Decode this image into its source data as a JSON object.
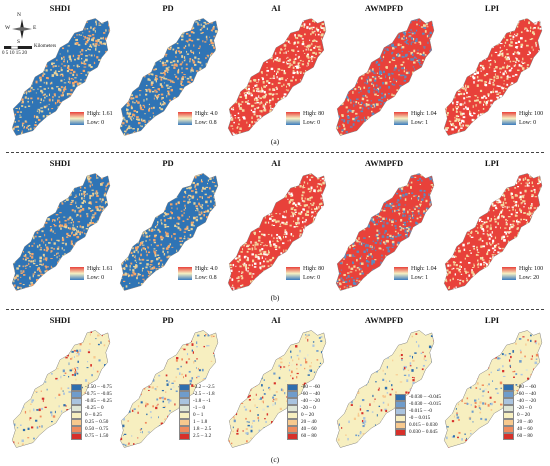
{
  "sections": [
    {
      "caption": "(a)",
      "panels": [
        {
          "title": "SHDI",
          "high": "High: 1.61",
          "low": "Low: 0",
          "base": "#2f74b5",
          "speck": "#e8d29a",
          "speck2": "#f4a56a",
          "grad": [
            "#e8413a",
            "#f7f1c4",
            "#3a7bbf"
          ]
        },
        {
          "title": "PD",
          "high": "High: 4.0",
          "low": "Low: 0.8",
          "base": "#2f74b5",
          "speck": "#e8d29a",
          "speck2": "#f4a56a",
          "grad": [
            "#e8413a",
            "#f7f1c4",
            "#3a7bbf"
          ]
        },
        {
          "title": "AI",
          "high": "High: 80",
          "low": "Low: 0",
          "base": "#e8413a",
          "speck": "#f4d8a0",
          "speck2": "#ffffff",
          "grad": [
            "#e8413a",
            "#f7f1c4",
            "#3a7bbf"
          ]
        },
        {
          "title": "AWMPFD",
          "high": "High: 1.04",
          "low": "Low: 1",
          "base": "#e8413a",
          "speck": "#5b8cc0",
          "speck2": "#f4d8a0",
          "grad": [
            "#e8413a",
            "#f7f1c4",
            "#3a7bbf"
          ]
        },
        {
          "title": "LPI",
          "high": "High: 100",
          "low": "Low: 0",
          "base": "#e8413a",
          "speck": "#f4d8a0",
          "speck2": "#ffffff",
          "grad": [
            "#e8413a",
            "#f7f1c4",
            "#3a7bbf"
          ]
        }
      ]
    },
    {
      "caption": "(b)",
      "panels": [
        {
          "title": "SHDI",
          "high": "High: 1.61",
          "low": "Low: 0",
          "base": "#2f74b5",
          "speck": "#e8d29a",
          "speck2": "#f4a56a",
          "grad": [
            "#e8413a",
            "#f7f1c4",
            "#3a7bbf"
          ]
        },
        {
          "title": "PD",
          "high": "High: 4.0",
          "low": "Low: 0.8",
          "base": "#2f74b5",
          "speck": "#e8d29a",
          "speck2": "#f4a56a",
          "grad": [
            "#e8413a",
            "#f7f1c4",
            "#3a7bbf"
          ]
        },
        {
          "title": "AI",
          "high": "High: 80",
          "low": "Low: 0",
          "base": "#e8413a",
          "speck": "#f4d8a0",
          "speck2": "#ffffff",
          "grad": [
            "#e8413a",
            "#f7f1c4",
            "#3a7bbf"
          ]
        },
        {
          "title": "AWMPFD",
          "high": "High: 1.04",
          "low": "Low: 1",
          "base": "#e8413a",
          "speck": "#5b8cc0",
          "speck2": "#f4d8a0",
          "grad": [
            "#e8413a",
            "#f7f1c4",
            "#3a7bbf"
          ]
        },
        {
          "title": "LPI",
          "high": "High: 100",
          "low": "Low: 20",
          "base": "#e8413a",
          "speck": "#f4d8a0",
          "speck2": "#ffffff",
          "grad": [
            "#e8413a",
            "#f7f1c4",
            "#3a7bbf"
          ]
        }
      ]
    },
    {
      "caption": "(c)",
      "panels": [
        {
          "title": "SHDI",
          "base": "#f7efc0",
          "classes": [
            {
              "label": "-1.50 – -0.75",
              "color": "#2f6fae"
            },
            {
              "label": "-0.75 – -0.05",
              "color": "#6f9ccb"
            },
            {
              "label": "-0.05 – -0.25",
              "color": "#a9c3df"
            },
            {
              "label": "-0.25 – 0",
              "color": "#dfe6d6"
            },
            {
              "label": "0 – 0.25",
              "color": "#f7efc0"
            },
            {
              "label": "0.25 – 0.50",
              "color": "#f7c98e"
            },
            {
              "label": "0.50 – 0.75",
              "color": "#f08a5c"
            },
            {
              "label": "0.75 – 1.50",
              "color": "#d7302a"
            }
          ]
        },
        {
          "title": "PD",
          "base": "#f7efc0",
          "classes": [
            {
              "label": "-3.2 – -2.5",
              "color": "#2f6fae"
            },
            {
              "label": "-2.5 – -1.8",
              "color": "#6f9ccb"
            },
            {
              "label": "-1.8 – -1",
              "color": "#a9c3df"
            },
            {
              "label": "-1 – 0",
              "color": "#dfe6d6"
            },
            {
              "label": "0 – 1",
              "color": "#f7efc0"
            },
            {
              "label": "1 – 1.8",
              "color": "#f7c98e"
            },
            {
              "label": "1.8 – 2.5",
              "color": "#f08a5c"
            },
            {
              "label": "2.5 – 3.2",
              "color": "#d7302a"
            }
          ]
        },
        {
          "title": "AI",
          "base": "#f7efc0",
          "classes": [
            {
              "label": "-80 – -60",
              "color": "#2f6fae"
            },
            {
              "label": "-60 – -40",
              "color": "#6f9ccb"
            },
            {
              "label": "-40 – -20",
              "color": "#a9c3df"
            },
            {
              "label": "-20 – 0",
              "color": "#dfe6d6"
            },
            {
              "label": "0 – 20",
              "color": "#f7efc0"
            },
            {
              "label": "20 – 40",
              "color": "#f7c98e"
            },
            {
              "label": "40 – 60",
              "color": "#f08a5c"
            },
            {
              "label": "60 – 80",
              "color": "#d7302a"
            }
          ]
        },
        {
          "title": "AWMPFD",
          "base": "#f7efc0",
          "classes": [
            {
              "label": "-0.030 – -0.045",
              "color": "#2f6fae"
            },
            {
              "label": "-0.030 – -0.015",
              "color": "#6f9ccb"
            },
            {
              "label": "-0.015 – -0",
              "color": "#a9c3df"
            },
            {
              "label": "-0 – 0.015",
              "color": "#f7efc0"
            },
            {
              "label": "0.015 – 0.030",
              "color": "#f7c98e"
            },
            {
              "label": "0.030 – 0.045",
              "color": "#d7302a"
            }
          ]
        },
        {
          "title": "LPI",
          "base": "#f7efc0",
          "classes": [
            {
              "label": "-80 – -60",
              "color": "#2f6fae"
            },
            {
              "label": "-60 – -40",
              "color": "#6f9ccb"
            },
            {
              "label": "-40 – -20",
              "color": "#a9c3df"
            },
            {
              "label": "-20 – 0",
              "color": "#dfe6d6"
            },
            {
              "label": "0 – 20",
              "color": "#f7efc0"
            },
            {
              "label": "20 – 40",
              "color": "#f7c98e"
            },
            {
              "label": "40 – 60",
              "color": "#f08a5c"
            },
            {
              "label": "60 – 80",
              "color": "#d7302a"
            }
          ]
        }
      ]
    }
  ],
  "compass": {
    "n": "N",
    "s": "S",
    "e": "E",
    "w": "W"
  },
  "scale": {
    "ticks": "0  5  10  15  20",
    "unit": "Kilometers"
  }
}
